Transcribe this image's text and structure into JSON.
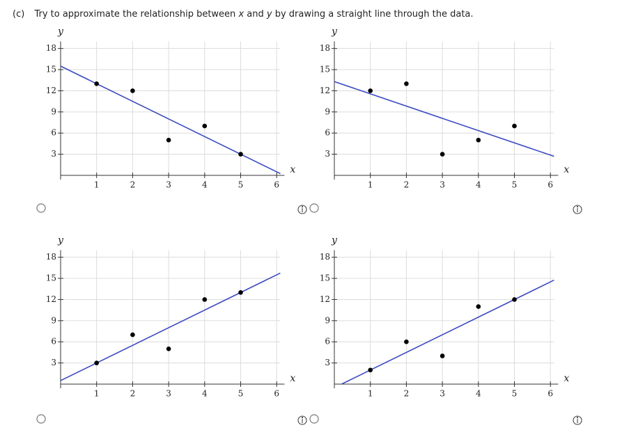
{
  "question": {
    "label": "(c)",
    "parts": [
      "Try to approximate the relationship between ",
      "x",
      " and ",
      "y",
      " by drawing a straight line through the data."
    ]
  },
  "chart_data": [
    {
      "type": "scatter",
      "xlabel": "x",
      "ylabel": "y",
      "x": [
        1,
        2,
        3,
        4,
        5
      ],
      "values": [
        13,
        12,
        5,
        7,
        3
      ],
      "color": "#000000",
      "line": {
        "x": [
          0,
          6.1
        ],
        "values": [
          15.5,
          0.25
        ],
        "color": "#3a4bc0"
      },
      "xlim": [
        0,
        6.1
      ],
      "ylim": [
        0,
        19
      ],
      "xticks": [
        1,
        2,
        3,
        4,
        5,
        6
      ],
      "yticks": [
        3,
        6,
        9,
        12,
        15,
        18
      ],
      "grid": true
    },
    {
      "type": "scatter",
      "xlabel": "x",
      "ylabel": "y",
      "x": [
        1,
        2,
        3,
        4,
        5
      ],
      "values": [
        12,
        13,
        3,
        5,
        7
      ],
      "color": "#000000",
      "line": {
        "x": [
          0,
          6.1
        ],
        "values": [
          13.3,
          2.7
        ],
        "color": "#3a4bc0"
      },
      "xlim": [
        0,
        6.1
      ],
      "ylim": [
        0,
        19
      ],
      "xticks": [
        1,
        2,
        3,
        4,
        5,
        6
      ],
      "yticks": [
        3,
        6,
        9,
        12,
        15,
        18
      ],
      "grid": true
    },
    {
      "type": "scatter",
      "xlabel": "x",
      "ylabel": "y",
      "x": [
        1,
        2,
        3,
        4,
        5
      ],
      "values": [
        3,
        7,
        5,
        12,
        13
      ],
      "color": "#000000",
      "line": {
        "x": [
          0,
          6.1
        ],
        "values": [
          0.5,
          15.75
        ],
        "color": "#3a4bc0"
      },
      "xlim": [
        0,
        6.1
      ],
      "ylim": [
        0,
        19
      ],
      "xticks": [
        1,
        2,
        3,
        4,
        5,
        6
      ],
      "yticks": [
        3,
        6,
        9,
        12,
        15,
        18
      ],
      "grid": true
    },
    {
      "type": "scatter",
      "xlabel": "x",
      "ylabel": "y",
      "x": [
        1,
        2,
        3,
        4,
        5
      ],
      "values": [
        2,
        6,
        4,
        11,
        12
      ],
      "color": "#000000",
      "line": {
        "x": [
          0.2,
          6.1
        ],
        "values": [
          0,
          14.75
        ],
        "color": "#3a4bc0"
      },
      "xlim": [
        0,
        6.1
      ],
      "ylim": [
        0,
        19
      ],
      "xticks": [
        1,
        2,
        3,
        4,
        5,
        6
      ],
      "yticks": [
        3,
        6,
        9,
        12,
        15,
        18
      ],
      "grid": true
    }
  ]
}
